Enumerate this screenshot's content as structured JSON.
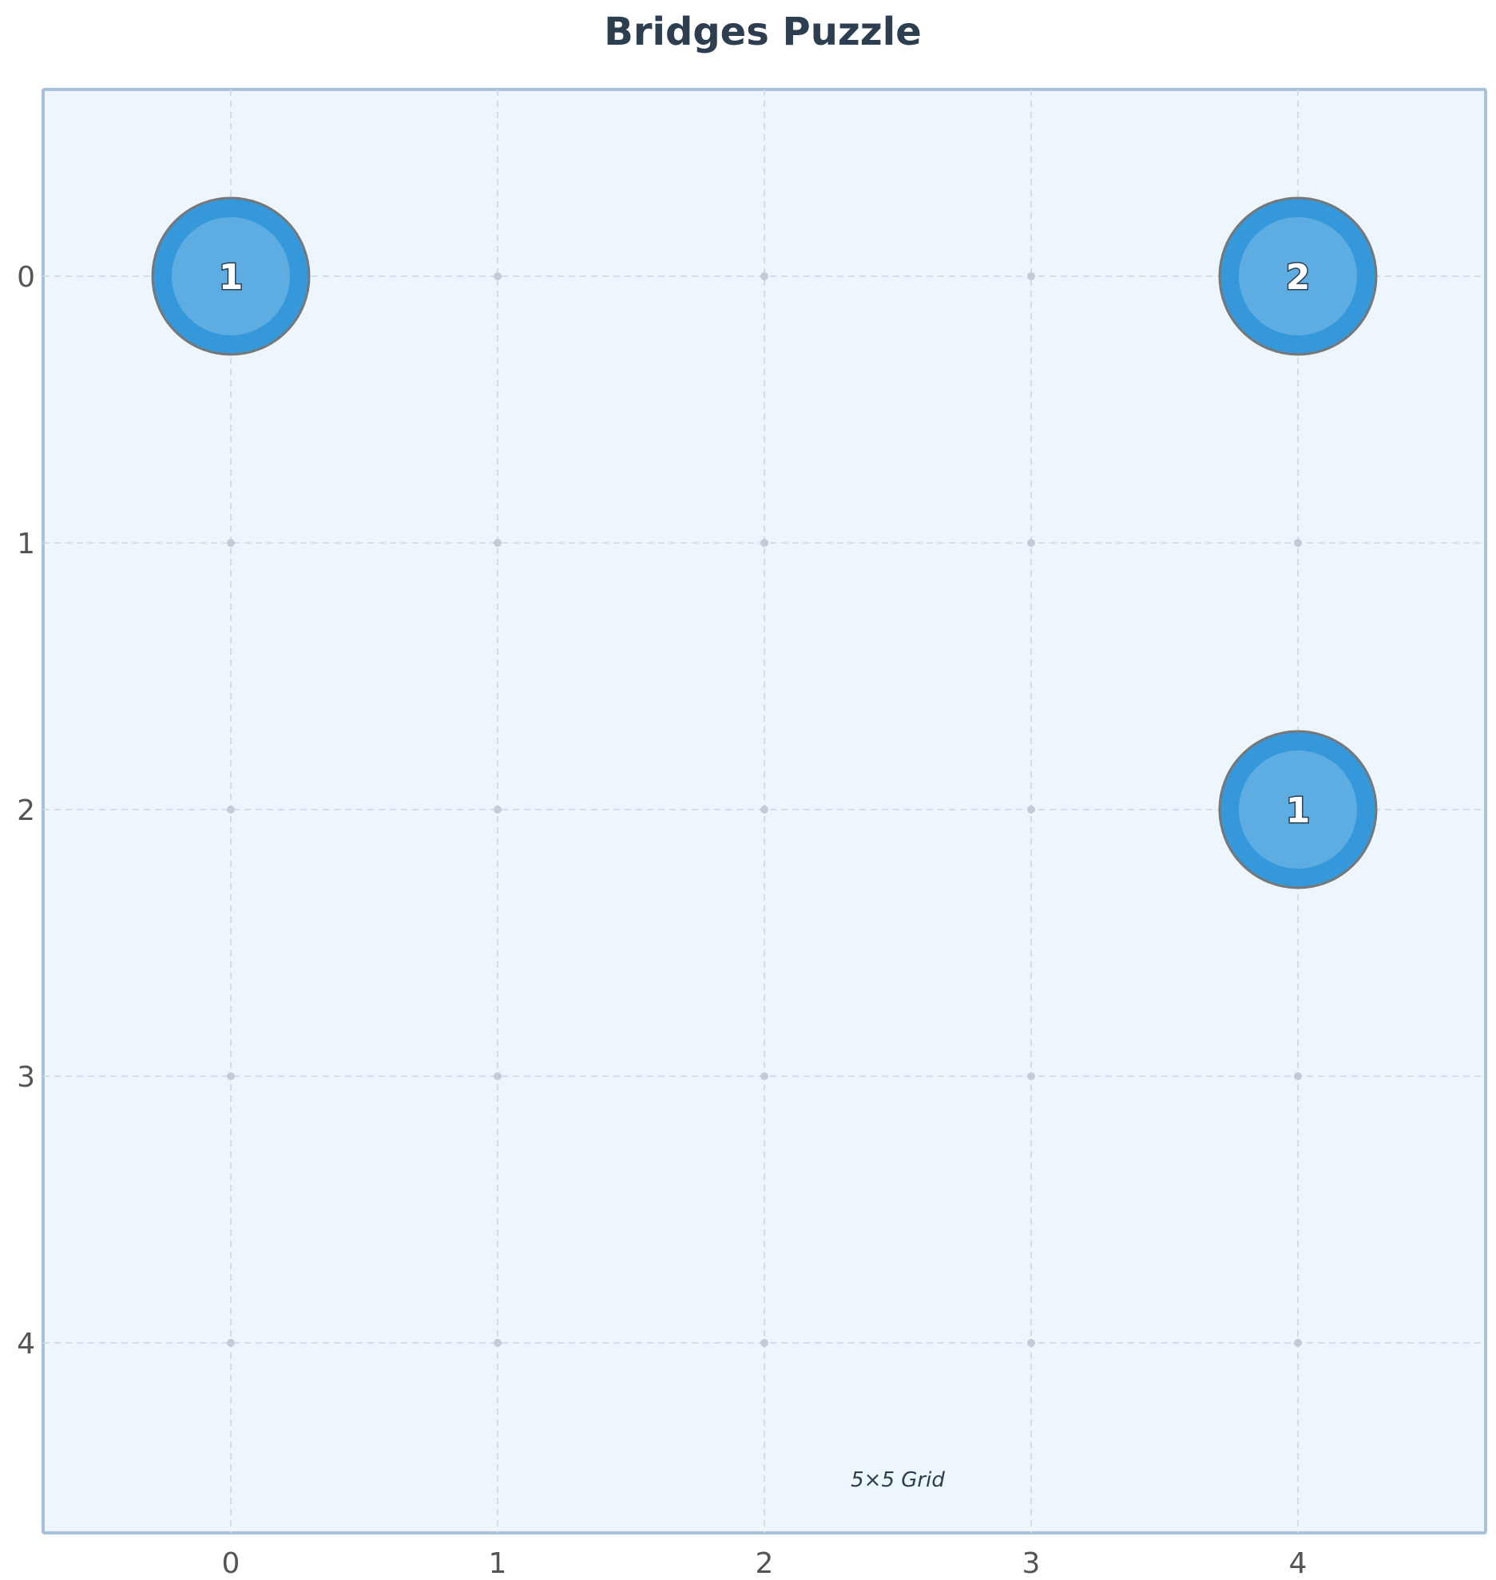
{
  "title": "Bridges Puzzle",
  "caption": "5×5 Grid",
  "grid": {
    "rows": 5,
    "cols": 5,
    "x_ticks": [
      "0",
      "1",
      "2",
      "3",
      "4"
    ],
    "y_ticks": [
      "0",
      "1",
      "2",
      "3",
      "4"
    ]
  },
  "islands": [
    {
      "row": 0,
      "col": 0,
      "value": "1"
    },
    {
      "row": 0,
      "col": 4,
      "value": "2"
    },
    {
      "row": 2,
      "col": 4,
      "value": "1"
    }
  ],
  "bridges": [],
  "colors": {
    "board_background": "#eef6fd",
    "board_border": "#a9c2dc",
    "grid_line": "#c9d9e8",
    "intersection_dot": "#c3ccd6",
    "island_outer": "#3498db",
    "island_inner": "#5dade2",
    "island_ring": "#777777",
    "title": "#2c3e50"
  }
}
